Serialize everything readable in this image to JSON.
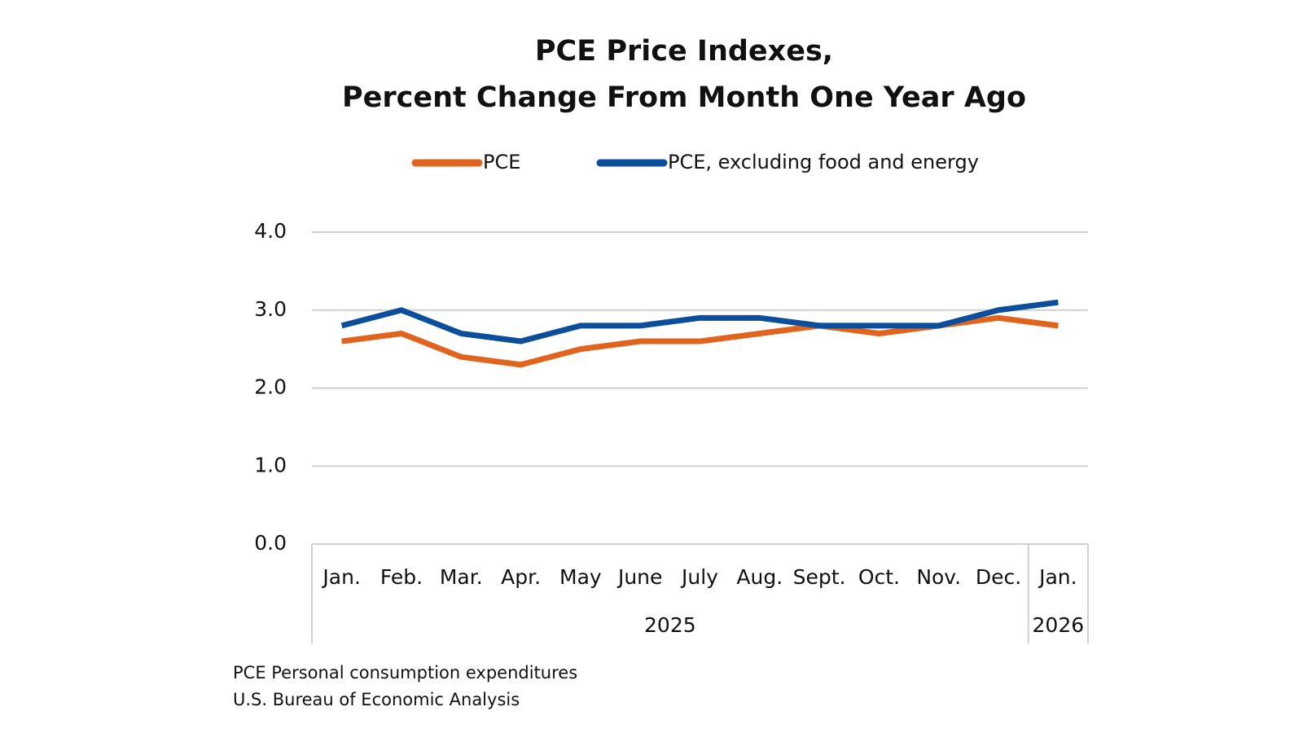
{
  "chart_data": {
    "type": "line",
    "title": "PCE Price Indexes,",
    "subtitle": "Percent Change From Month One Year Ago",
    "categories": [
      "Jan.",
      "Feb.",
      "Mar.",
      "Apr.",
      "May",
      "June",
      "July",
      "Aug.",
      "Sept.",
      "Oct.",
      "Nov.",
      "Dec.",
      "Jan."
    ],
    "category_groups": [
      "2025",
      "2025",
      "2025",
      "2025",
      "2025",
      "2025",
      "2025",
      "2025",
      "2025",
      "2025",
      "2025",
      "2025",
      "2026"
    ],
    "series": [
      {
        "name": "PCE",
        "color": "#e0641e",
        "values": [
          2.6,
          2.7,
          2.4,
          2.3,
          2.5,
          2.6,
          2.6,
          2.7,
          2.8,
          2.7,
          2.8,
          2.9,
          2.8
        ]
      },
      {
        "name": "PCE, excluding food and energy",
        "color": "#0b4f9c",
        "values": [
          2.8,
          3.0,
          2.7,
          2.6,
          2.8,
          2.8,
          2.9,
          2.9,
          2.8,
          2.8,
          2.8,
          3.0,
          3.1
        ]
      }
    ],
    "ylim": [
      0,
      4
    ],
    "yticks": [
      {
        "value": 0,
        "label": "0.0"
      },
      {
        "value": 1,
        "label": "1.0"
      },
      {
        "value": 2,
        "label": "2.0"
      },
      {
        "value": 3,
        "label": "3.0"
      },
      {
        "value": 4,
        "label": "4.0"
      }
    ],
    "grid": true,
    "legend": "top",
    "notes": [
      "PCE Personal consumption expenditures",
      "U.S. Bureau of Economic Analysis"
    ]
  }
}
